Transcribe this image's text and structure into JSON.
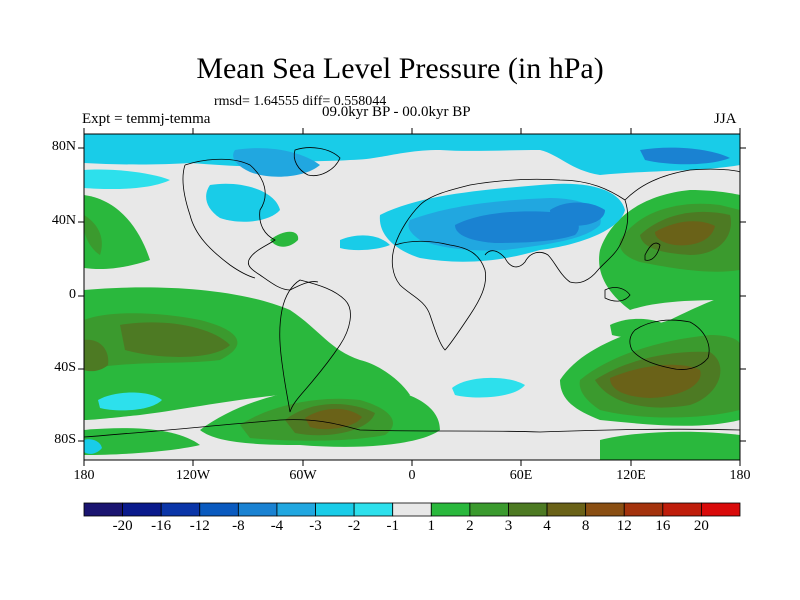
{
  "title": "Mean Sea Level Pressure (in hPa)",
  "stats": "rmsd= 1.64555 diff= 0.558044",
  "experiment": "Expt = temmj-temma",
  "period": "09.0kyr BP - 00.0kyr BP",
  "season": "JJA",
  "axes": {
    "lat_labels": [
      "80N",
      "40N",
      "0",
      "40S",
      "80S"
    ],
    "lon_labels": [
      "180",
      "120W",
      "60W",
      "0",
      "60E",
      "120E",
      "180"
    ]
  },
  "colorbar": {
    "labels": [
      "-20",
      "-16",
      "-12",
      "-8",
      "-4",
      "-3",
      "-2",
      "-1",
      "1",
      "2",
      "3",
      "4",
      "8",
      "12",
      "16",
      "20"
    ],
    "colors": [
      "#1a1470",
      "#0a1a8c",
      "#0a35a8",
      "#0a5abf",
      "#1a82d2",
      "#21a7e0",
      "#19cce8",
      "#2de0ec",
      "#e8e8e8",
      "#2ab83d",
      "#3b9a2e",
      "#4d7a23",
      "#6a6218",
      "#8a4f13",
      "#a4330d",
      "#bf1d0b",
      "#d90a0a"
    ]
  },
  "colors": {
    "neutral": "#e8e8e8",
    "green": "#2ab83d",
    "dark_green": "#3b9a2e",
    "olive": "#4d7a23",
    "brown": "#6a6218",
    "cyan": "#19cce8",
    "light_cyan": "#2de0ec",
    "blue": "#1a82d2",
    "mid_blue": "#21a7e0"
  }
}
